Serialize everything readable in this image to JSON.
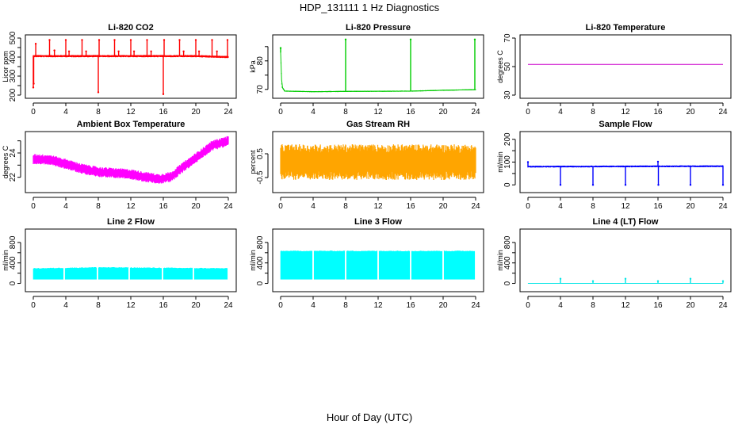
{
  "figure": {
    "title": "HDP_131111  1 Hz Diagnostics",
    "xlabel": "Hour of Day (UTC)"
  },
  "chart_data": [
    {
      "type": "line",
      "title": "Li-820 CO2",
      "ylabel": "Licor ppm",
      "color": "#ff0000",
      "xlim": [
        0,
        24
      ],
      "ylim": [
        200,
        500
      ],
      "xticks": [
        0,
        4,
        8,
        12,
        16,
        20,
        24
      ],
      "yticks": [
        200,
        250,
        300,
        350,
        400,
        450,
        500
      ],
      "ytick_labels": [
        "200",
        "",
        "300",
        "",
        "400",
        "",
        "500"
      ],
      "series": [
        {
          "baseline": {
            "x": [
              0,
              4,
              8,
              12,
              16,
              20,
              24
            ],
            "y": [
              405,
              405,
              405,
              405,
              405,
              405,
              400
            ]
          },
          "band": 6,
          "spikes": [
            {
              "x": 0.0,
              "y": 240
            },
            {
              "x": 0.05,
              "y": 260
            },
            {
              "x": 0.3,
              "y": 470
            },
            {
              "x": 2.0,
              "y": 490
            },
            {
              "x": 2.6,
              "y": 435
            },
            {
              "x": 4.0,
              "y": 490
            },
            {
              "x": 4.4,
              "y": 430
            },
            {
              "x": 6.0,
              "y": 490
            },
            {
              "x": 6.5,
              "y": 430
            },
            {
              "x": 8.0,
              "y": 215
            },
            {
              "x": 8.1,
              "y": 490
            },
            {
              "x": 10.0,
              "y": 490
            },
            {
              "x": 10.5,
              "y": 430
            },
            {
              "x": 12.0,
              "y": 490
            },
            {
              "x": 12.4,
              "y": 430
            },
            {
              "x": 14.0,
              "y": 490
            },
            {
              "x": 14.5,
              "y": 430
            },
            {
              "x": 16.0,
              "y": 205
            },
            {
              "x": 16.1,
              "y": 490
            },
            {
              "x": 18.0,
              "y": 490
            },
            {
              "x": 18.5,
              "y": 430
            },
            {
              "x": 20.0,
              "y": 490
            },
            {
              "x": 20.4,
              "y": 430
            },
            {
              "x": 22.0,
              "y": 490
            },
            {
              "x": 22.6,
              "y": 430
            },
            {
              "x": 23.9,
              "y": 490
            }
          ]
        }
      ]
    },
    {
      "type": "line",
      "title": "Li-820 Pressure",
      "ylabel": "kPa",
      "color": "#00cc00",
      "xlim": [
        0,
        24
      ],
      "ylim": [
        68,
        88
      ],
      "xticks": [
        0,
        4,
        8,
        12,
        16,
        20,
        24
      ],
      "yticks": [
        70,
        75,
        80,
        85
      ],
      "ytick_labels": [
        "70",
        "",
        "80",
        ""
      ],
      "series": [
        {
          "baseline": {
            "x": [
              0,
              0.15,
              0.5,
              4,
              8,
              16,
              20,
              23.9
            ],
            "y": [
              83,
              71,
              69.4,
              69.2,
              69.3,
              69.4,
              69.7,
              69.9
            ]
          },
          "band": 0.2,
          "spikes": [
            {
              "x": 0.0,
              "y": 84.5
            },
            {
              "x": 8.0,
              "y": 87.5
            },
            {
              "x": 16.0,
              "y": 87.5
            },
            {
              "x": 23.9,
              "y": 87.5
            }
          ]
        }
      ]
    },
    {
      "type": "line",
      "title": "Li-820 Temperature",
      "ylabel": "degrees C",
      "color": "#cc00cc",
      "xlim": [
        0,
        24
      ],
      "ylim": [
        30,
        70
      ],
      "xticks": [
        0,
        4,
        8,
        12,
        16,
        20,
        24
      ],
      "yticks": [
        30,
        50,
        70
      ],
      "ytick_labels": [
        "30",
        "50",
        "70"
      ],
      "series": [
        {
          "baseline": {
            "x": [
              0,
              24
            ],
            "y": [
              51.5,
              51.5
            ]
          },
          "band": 0,
          "spikes": []
        }
      ]
    },
    {
      "type": "line",
      "title": "Ambient Box Temperature",
      "ylabel": "degrees C",
      "color": "#ff00ff",
      "xlim": [
        0,
        24
      ],
      "ylim": [
        21,
        25.5
      ],
      "xticks": [
        0,
        4,
        8,
        12,
        16,
        20,
        24
      ],
      "yticks": [
        22,
        23,
        24,
        25
      ],
      "ytick_labels": [
        "22",
        "",
        "24",
        ""
      ],
      "series": [
        {
          "baseline": {
            "x": [
              0,
              2,
              4,
              6,
              8,
              10,
              12,
              14,
              15.5,
              17,
              18,
              20,
              22,
              24
            ],
            "y": [
              23.5,
              23.45,
              23.1,
              22.7,
              22.45,
              22.35,
              22.25,
              22.0,
              21.85,
              22.05,
              22.6,
              23.6,
              24.6,
              25.0
            ]
          },
          "band": 0.42,
          "spikes": []
        }
      ]
    },
    {
      "type": "line",
      "title": "Gas Stream RH",
      "ylabel": "percent",
      "color": "#ffa500",
      "xlim": [
        0,
        24
      ],
      "ylim": [
        -1.0,
        1.3
      ],
      "xticks": [
        0,
        4,
        8,
        12,
        16,
        20,
        24
      ],
      "yticks": [
        -0.5,
        0.5
      ],
      "ytick_labels": [
        "-0.5",
        "0.5"
      ],
      "series": [
        {
          "baseline": {
            "x": [
              0,
              24
            ],
            "y": [
              0.15,
              0.15
            ]
          },
          "band": 0.75,
          "spikes": []
        }
      ]
    },
    {
      "type": "line",
      "title": "Sample Flow",
      "ylabel": "ml/min",
      "color": "#0000ff",
      "xlim": [
        0,
        24
      ],
      "ylim": [
        -20,
        220
      ],
      "xticks": [
        0,
        4,
        8,
        12,
        16,
        20,
        24
      ],
      "yticks": [
        0,
        50,
        100,
        150,
        200
      ],
      "ytick_labels": [
        "0",
        "",
        "100",
        "",
        "200"
      ],
      "series": [
        {
          "baseline": {
            "x": [
              0,
              24
            ],
            "y": [
              80,
              82
            ]
          },
          "band": 4,
          "spikes": [
            {
              "x": 0.0,
              "y": 100
            },
            {
              "x": 4.0,
              "y": 0
            },
            {
              "x": 8.0,
              "y": 0
            },
            {
              "x": 12.0,
              "y": 0
            },
            {
              "x": 16.0,
              "y": 102
            },
            {
              "x": 16.05,
              "y": 0
            },
            {
              "x": 20.0,
              "y": 0
            },
            {
              "x": 24.0,
              "y": 0
            }
          ]
        }
      ]
    },
    {
      "type": "area",
      "title": "Line 2 Flow",
      "ylabel": "ml/min",
      "color": "#00ffff",
      "xlim": [
        0,
        24
      ],
      "ylim": [
        -100,
        1000
      ],
      "xticks": [
        0,
        4,
        8,
        12,
        16,
        20,
        24
      ],
      "yticks": [
        0,
        200,
        400,
        600,
        800
      ],
      "ytick_labels": [
        "0",
        "",
        "400",
        "",
        "800"
      ],
      "series": [
        {
          "low": 80,
          "high": {
            "x": [
              0,
              4,
              8,
              12,
              16,
              20,
              24
            ],
            "y": [
              290,
              300,
              310,
              305,
              300,
              295,
              290
            ]
          },
          "gaps": [
            3.8,
            7.9,
            11.8,
            15.9,
            19.7
          ]
        }
      ]
    },
    {
      "type": "area",
      "title": "Line 3 Flow",
      "ylabel": "ml/min",
      "color": "#00ffff",
      "xlim": [
        0,
        24
      ],
      "ylim": [
        -100,
        1000
      ],
      "xticks": [
        0,
        4,
        8,
        12,
        16,
        20,
        24
      ],
      "yticks": [
        0,
        200,
        400,
        600,
        800
      ],
      "ytick_labels": [
        "0",
        "",
        "400",
        "",
        "800"
      ],
      "series": [
        {
          "low": 80,
          "high": {
            "x": [
              0,
              24
            ],
            "y": [
              630,
              630
            ]
          },
          "gaps": [
            4.0,
            8.0,
            12.0,
            16.0,
            20.0
          ]
        }
      ]
    },
    {
      "type": "line",
      "title": "Line 4 (LT) Flow",
      "ylabel": "ml/min",
      "color": "#00e5e5",
      "xlim": [
        0,
        24
      ],
      "ylim": [
        -100,
        1000
      ],
      "xticks": [
        0,
        4,
        8,
        12,
        16,
        20,
        24
      ],
      "yticks": [
        0,
        200,
        400,
        600,
        800
      ],
      "ytick_labels": [
        "0",
        "",
        "400",
        "",
        "800"
      ],
      "series": [
        {
          "baseline": {
            "x": [
              0,
              24
            ],
            "y": [
              0,
              0
            ]
          },
          "band": 2,
          "spikes": [
            {
              "x": 4.0,
              "y": 90
            },
            {
              "x": 8.0,
              "y": 45
            },
            {
              "x": 12.0,
              "y": 90
            },
            {
              "x": 16.0,
              "y": 45
            },
            {
              "x": 20.0,
              "y": 90
            },
            {
              "x": 24.0,
              "y": 45
            }
          ]
        }
      ]
    }
  ]
}
